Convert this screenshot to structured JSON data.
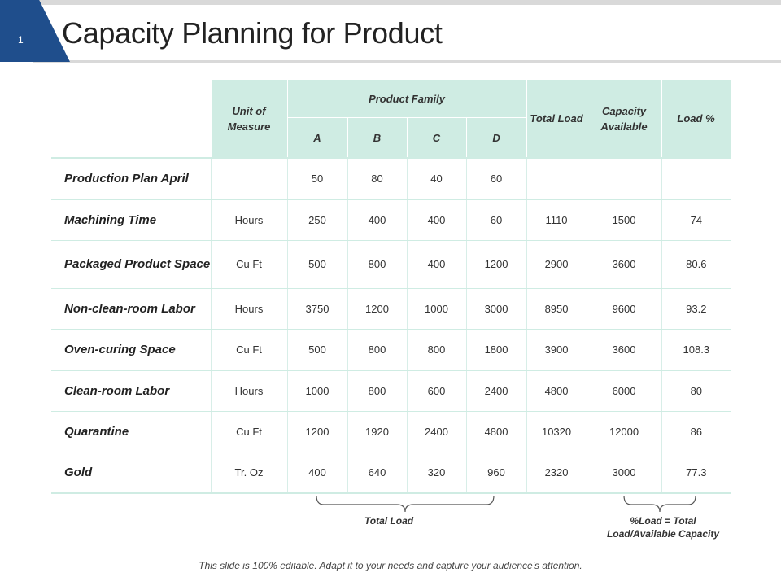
{
  "slide": {
    "number": "1",
    "title": "Capacity Planning for Product"
  },
  "table": {
    "headers": {
      "unit": "Unit of Measure",
      "family": "Product Family",
      "family_cols": [
        "A",
        "B",
        "C",
        "D"
      ],
      "total_load": "Total Load",
      "capacity": "Capacity Available",
      "load_pct": "Load %"
    },
    "rows": [
      {
        "label": "Production Plan April",
        "unit": "",
        "a": "50",
        "b": "80",
        "c": "40",
        "d": "60",
        "total": "",
        "capacity": "",
        "load": ""
      },
      {
        "label": "Machining Time",
        "unit": "Hours",
        "a": "250",
        "b": "400",
        "c": "400",
        "d": "60",
        "total": "1110",
        "capacity": "1500",
        "load": "74"
      },
      {
        "label": "Packaged Product Space",
        "unit": "Cu Ft",
        "a": "500",
        "b": "800",
        "c": "400",
        "d": "1200",
        "total": "2900",
        "capacity": "3600",
        "load": "80.6"
      },
      {
        "label": "Non-clean-room Labor",
        "unit": "Hours",
        "a": "3750",
        "b": "1200",
        "c": "1000",
        "d": "3000",
        "total": "8950",
        "capacity": "9600",
        "load": "93.2"
      },
      {
        "label": "Oven-curing Space",
        "unit": "Cu Ft",
        "a": "500",
        "b": "800",
        "c": "800",
        "d": "1800",
        "total": "3900",
        "capacity": "3600",
        "load": "108.3"
      },
      {
        "label": "Clean-room Labor",
        "unit": "Hours",
        "a": "1000",
        "b": "800",
        "c": "600",
        "d": "2400",
        "total": "4800",
        "capacity": "6000",
        "load": "80"
      },
      {
        "label": "Quarantine",
        "unit": "Cu Ft",
        "a": "1200",
        "b": "1920",
        "c": "2400",
        "d": "4800",
        "total": "10320",
        "capacity": "12000",
        "load": "86"
      },
      {
        "label": "Gold",
        "unit": "Tr. Oz",
        "a": "400",
        "b": "640",
        "c": "320",
        "d": "960",
        "total": "2320",
        "capacity": "3000",
        "load": "77.3"
      }
    ]
  },
  "annotations": {
    "total_load": "Total Load",
    "load_formula_line1": "%Load  = Total",
    "load_formula_line2": "Load/Available Capacity"
  },
  "footer": "This slide is 100% editable. Adapt it to your needs and capture your audience's attention.",
  "colors": {
    "accent": "#1f4e8c",
    "header_fill": "#cfece3",
    "strip": "#d9d9d9"
  }
}
